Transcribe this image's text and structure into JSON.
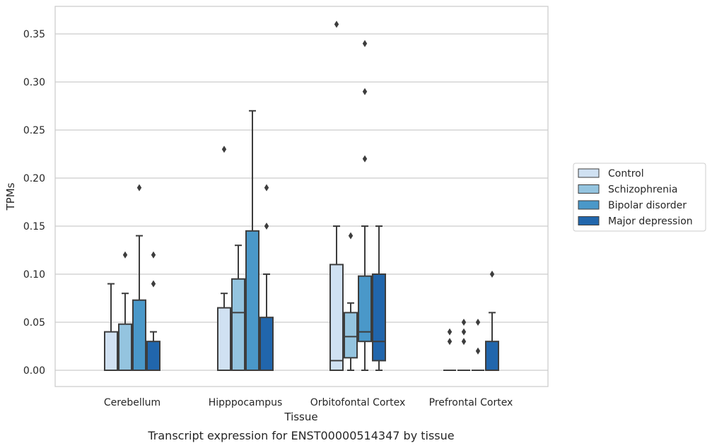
{
  "caption": "Transcript expression for ENST00000514347 by tissue",
  "chart_data": {
    "type": "box",
    "xlabel": "Tissue",
    "ylabel": "TPMs",
    "ylim": [
      -0.017,
      0.378
    ],
    "yticks": [
      "0.00",
      "0.05",
      "0.10",
      "0.15",
      "0.20",
      "0.25",
      "0.30",
      "0.35"
    ],
    "grid": "horizontal",
    "legend_position": "right",
    "categories": [
      "Cerebellum",
      "Hipppocampus",
      "Orbitofontal Cortex",
      "Prefrontal Cortex"
    ],
    "series": [
      {
        "name": "Control",
        "color": "#d0e1f2",
        "boxes": [
          {
            "q1": 0.0,
            "median": 0.0,
            "q3": 0.04,
            "wlo": 0.0,
            "whi": 0.09,
            "fliers": []
          },
          {
            "q1": 0.0,
            "median": 0.0,
            "q3": 0.065,
            "wlo": 0.0,
            "whi": 0.08,
            "fliers": [
              0.23
            ]
          },
          {
            "q1": 0.0,
            "median": 0.01,
            "q3": 0.11,
            "wlo": 0.0,
            "whi": 0.15,
            "fliers": [
              0.36
            ]
          },
          {
            "q1": 0.0,
            "median": 0.0,
            "q3": 0.0,
            "wlo": 0.0,
            "whi": 0.0,
            "fliers": [
              0.03,
              0.04
            ]
          }
        ]
      },
      {
        "name": "Schizophrenia",
        "color": "#94c4df",
        "boxes": [
          {
            "q1": 0.0,
            "median": 0.0,
            "q3": 0.048,
            "wlo": 0.0,
            "whi": 0.08,
            "fliers": [
              0.12
            ]
          },
          {
            "q1": 0.0,
            "median": 0.06,
            "q3": 0.095,
            "wlo": 0.0,
            "whi": 0.13,
            "fliers": []
          },
          {
            "q1": 0.013,
            "median": 0.035,
            "q3": 0.06,
            "wlo": 0.0,
            "whi": 0.07,
            "fliers": [
              0.14
            ]
          },
          {
            "q1": 0.0,
            "median": 0.0,
            "q3": 0.0,
            "wlo": 0.0,
            "whi": 0.0,
            "fliers": [
              0.03,
              0.04,
              0.05
            ]
          }
        ]
      },
      {
        "name": "Bipolar disorder",
        "color": "#4a98c9",
        "boxes": [
          {
            "q1": 0.0,
            "median": 0.0,
            "q3": 0.073,
            "wlo": 0.0,
            "whi": 0.14,
            "fliers": [
              0.19
            ]
          },
          {
            "q1": 0.0,
            "median": 0.0,
            "q3": 0.145,
            "wlo": 0.0,
            "whi": 0.27,
            "fliers": []
          },
          {
            "q1": 0.03,
            "median": 0.04,
            "q3": 0.098,
            "wlo": 0.0,
            "whi": 0.15,
            "fliers": [
              0.22,
              0.29,
              0.34
            ]
          },
          {
            "q1": 0.0,
            "median": 0.0,
            "q3": 0.0,
            "wlo": 0.0,
            "whi": 0.0,
            "fliers": [
              0.02,
              0.05
            ]
          }
        ]
      },
      {
        "name": "Major depression",
        "color": "#2166ac",
        "boxes": [
          {
            "q1": 0.0,
            "median": 0.0,
            "q3": 0.03,
            "wlo": 0.0,
            "whi": 0.04,
            "fliers": [
              0.09,
              0.12
            ]
          },
          {
            "q1": 0.0,
            "median": 0.0,
            "q3": 0.055,
            "wlo": 0.0,
            "whi": 0.1,
            "fliers": [
              0.15,
              0.19
            ]
          },
          {
            "q1": 0.01,
            "median": 0.03,
            "q3": 0.1,
            "wlo": 0.0,
            "whi": 0.15,
            "fliers": []
          },
          {
            "q1": 0.0,
            "median": 0.0,
            "q3": 0.03,
            "wlo": 0.0,
            "whi": 0.06,
            "fliers": [
              0.1
            ]
          }
        ]
      }
    ]
  }
}
